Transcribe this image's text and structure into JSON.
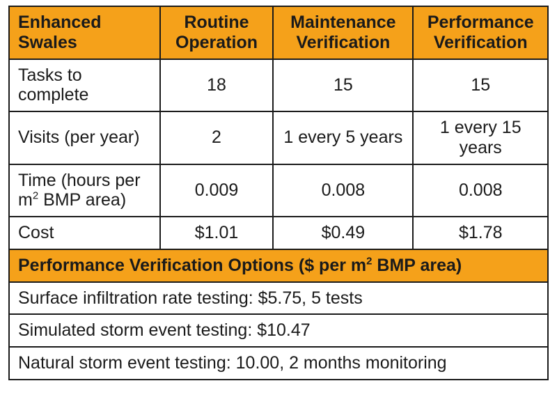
{
  "table": {
    "header_bg": "#f5a11a",
    "border_color": "#1a1a1a",
    "text_color": "#1a1a1a",
    "background_color": "#ffffff",
    "font_family": "Myriad Pro",
    "cell_fontsize": 25,
    "column_widths_pct": [
      28,
      21,
      26,
      25
    ],
    "columns": {
      "rowlabel": "Enhanced Swales",
      "c1": "Routine Operation",
      "c2": "Maintenance Verification",
      "c3": "Performance Verification"
    },
    "rows": [
      {
        "label": "Tasks to complete",
        "c1": "18",
        "c2": "15",
        "c3": "15"
      },
      {
        "label": "Visits (per year)",
        "c1": "2",
        "c2": "1 every 5 years",
        "c3": "1 every 15 years"
      },
      {
        "label_html": "Time (hours per m<sup>2</sup> BMP area)",
        "c1": "0.009",
        "c2": "0.008",
        "c3": "0.008"
      },
      {
        "label": "Cost",
        "c1": "$1.01",
        "c2": "$0.49",
        "c3": "$1.78"
      }
    ],
    "section_heading_html": "Performance Verification Options ($ per m<sup>2</sup> BMP area)",
    "options": [
      "Surface infiltration rate testing: $5.75, 5 tests",
      "Simulated storm event testing: $10.47",
      "Natural storm event testing: 10.00, 2 months monitoring"
    ]
  }
}
